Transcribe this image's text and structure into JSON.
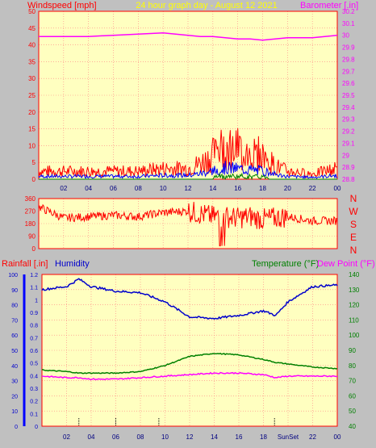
{
  "header": {
    "left_label": "Windspeed [mph]",
    "center_label": "24 hour graph day - August 12 2021",
    "right_label": "Barometer [.in]"
  },
  "colors": {
    "background": "#c0c0c0",
    "plot_bg": "#ffffc0",
    "grid": "#ff8080",
    "axis": "#ff0000",
    "windspeed": "#ff0000",
    "gust_avg": "#0000ff",
    "wind_low": "#008000",
    "barometer": "#ff00ff",
    "direction": "#ff0000",
    "humidity": "#0000cc",
    "temperature": "#008000",
    "dewpoint": "#ff00ff",
    "rain_axis": "#0000ff"
  },
  "x_ticks": [
    "02",
    "04",
    "06",
    "08",
    "10",
    "12",
    "14",
    "16",
    "18",
    "20",
    "22",
    "00"
  ],
  "x_ticks_bottom": [
    "02",
    "04",
    "06",
    "08",
    "10",
    "12",
    "14",
    "16",
    "18",
    "SunSet",
    "22",
    "00"
  ],
  "wind_axis_ticks": [
    "0",
    "5",
    "10",
    "15",
    "20",
    "25",
    "30",
    "35",
    "40",
    "45",
    "50"
  ],
  "baro_axis_ticks": [
    "28.8",
    "28.9",
    "29",
    "29.1",
    "29.2",
    "29.3",
    "29.4",
    "29.5",
    "29.6",
    "29.7",
    "29.8",
    "29.9",
    "30",
    "30.1",
    "30.2"
  ],
  "dir_axis_ticks": [
    "360",
    "270",
    "180",
    "90",
    "0"
  ],
  "dir_letters": [
    "N",
    "W",
    "S",
    "E",
    "N"
  ],
  "bottom_labels": {
    "rainfall": "Rainfall [.in]",
    "humidity": "Humidity",
    "temperature": "Temperature (°F)",
    "dewpoint": "Dew Point (°F)"
  },
  "humidity_ticks": [
    "0",
    "10",
    "20",
    "30",
    "40",
    "50",
    "60",
    "70",
    "80",
    "90",
    "100"
  ],
  "rain_ticks": [
    "0",
    "0.1",
    "0.2",
    "0.3",
    "0.4",
    "0.5",
    "0.6",
    "0.7",
    "0.8",
    "0.9",
    "1",
    "1.1",
    "1.2"
  ],
  "temp_ticks": [
    "40",
    "50",
    "60",
    "70",
    "80",
    "90",
    "100",
    "110",
    "120",
    "130",
    "140"
  ],
  "chart_data": [
    {
      "type": "line",
      "title": "24 hour graph day - August 12 2021",
      "xlabel": "",
      "ylabel": "Windspeed [mph]",
      "y2label": "Barometer [.in]",
      "x_hours": [
        0,
        2,
        4,
        6,
        8,
        10,
        12,
        13,
        14,
        15,
        16,
        17,
        18,
        19,
        20,
        22,
        24
      ],
      "ylim": [
        0,
        50
      ],
      "y2lim": [
        28.8,
        30.2
      ],
      "series": [
        {
          "name": "Windspeed [mph]",
          "values": [
            3,
            3,
            3,
            3,
            3,
            4,
            4,
            6,
            9,
            12,
            11,
            10,
            9,
            5,
            3,
            2,
            4
          ]
        },
        {
          "name": "Barometer [.in]",
          "values": [
            29.99,
            29.99,
            29.99,
            30.0,
            30.01,
            30.02,
            30.0,
            29.99,
            29.99,
            29.98,
            29.97,
            29.97,
            29.96,
            29.97,
            29.98,
            29.98,
            30.0
          ]
        }
      ]
    },
    {
      "type": "scatter",
      "title": "",
      "ylim": [
        0,
        360
      ],
      "x_hours": [
        0,
        2,
        4,
        6,
        8,
        10,
        12,
        13,
        14,
        15,
        16,
        17,
        18,
        19,
        20,
        22,
        24
      ],
      "series": [
        {
          "name": "",
          "values": [
            300,
            220,
            230,
            240,
            230,
            260,
            270,
            250,
            230,
            230,
            220,
            230,
            210,
            220,
            230,
            200,
            200
          ]
        }
      ]
    },
    {
      "type": "line",
      "title": "",
      "ylabel": "Rainfall [.in]",
      "y2label": "Temperature (°F)",
      "x_hours": [
        0,
        2,
        3,
        4,
        6,
        8,
        10,
        12,
        14,
        16,
        18,
        19,
        20,
        22,
        24
      ],
      "ylim": [
        0,
        100
      ],
      "y2lim": [
        40,
        140
      ],
      "series": [
        {
          "name": "Humidity",
          "values": [
            90,
            92,
            97,
            92,
            89,
            88,
            82,
            72,
            71,
            73,
            76,
            73,
            82,
            92,
            93
          ]
        },
        {
          "name": "Temperature (°F)",
          "values": [
            77,
            76,
            75,
            75,
            75,
            76,
            80,
            86,
            88,
            87,
            84,
            82,
            81,
            79,
            78
          ]
        },
        {
          "name": "Dew Point (°F)",
          "values": [
            73,
            72,
            72,
            71,
            71,
            72,
            73,
            74,
            75,
            75,
            74,
            72,
            73,
            73,
            73
          ]
        },
        {
          "name": "Rainfall [.in]",
          "values": [
            0,
            0,
            0,
            0,
            0,
            0,
            0,
            0,
            0,
            0,
            0,
            0,
            0,
            0,
            0
          ]
        }
      ]
    }
  ]
}
